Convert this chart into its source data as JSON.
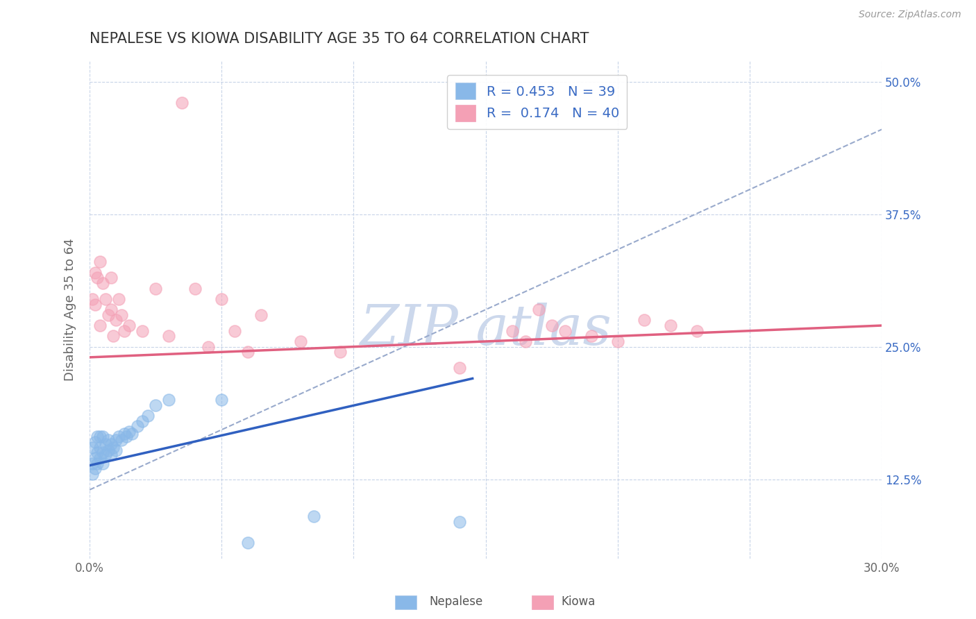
{
  "title": "NEPALESE VS KIOWA DISABILITY AGE 35 TO 64 CORRELATION CHART",
  "source": "Source: ZipAtlas.com",
  "ylabel": "Disability Age 35 to 64",
  "xlim": [
    0.0,
    0.3
  ],
  "ylim": [
    0.05,
    0.52
  ],
  "xticks": [
    0.0,
    0.05,
    0.1,
    0.15,
    0.2,
    0.25,
    0.3
  ],
  "xtick_labels": [
    "0.0%",
    "",
    "",
    "",
    "",
    "",
    "30.0%"
  ],
  "yticks": [
    0.125,
    0.25,
    0.375,
    0.5
  ],
  "ytick_labels": [
    "12.5%",
    "25.0%",
    "37.5%",
    "50.0%"
  ],
  "nepalese_R": 0.453,
  "nepalese_N": 39,
  "kiowa_R": 0.174,
  "kiowa_N": 40,
  "nepalese_color": "#89b8e8",
  "kiowa_color": "#f4a0b5",
  "nepalese_line_color": "#3060c0",
  "kiowa_line_color": "#e06080",
  "dashed_line_color": "#99aacc",
  "legend_text_color": "#3a6bc4",
  "background_color": "#ffffff",
  "grid_color": "#c8d4e8",
  "title_color": "#333333",
  "watermark_color": "#ccd8ec",
  "nepalese_x": [
    0.001,
    0.001,
    0.001,
    0.002,
    0.002,
    0.002,
    0.003,
    0.003,
    0.003,
    0.004,
    0.004,
    0.004,
    0.005,
    0.005,
    0.005,
    0.006,
    0.006,
    0.007,
    0.007,
    0.008,
    0.008,
    0.009,
    0.01,
    0.01,
    0.011,
    0.012,
    0.013,
    0.014,
    0.015,
    0.016,
    0.018,
    0.02,
    0.022,
    0.025,
    0.03,
    0.05,
    0.06,
    0.085,
    0.14
  ],
  "nepalese_y": [
    0.13,
    0.14,
    0.155,
    0.135,
    0.145,
    0.16,
    0.14,
    0.15,
    0.165,
    0.145,
    0.155,
    0.165,
    0.14,
    0.15,
    0.165,
    0.148,
    0.158,
    0.152,
    0.162,
    0.148,
    0.158,
    0.155,
    0.152,
    0.162,
    0.165,
    0.162,
    0.168,
    0.165,
    0.17,
    0.168,
    0.175,
    0.18,
    0.185,
    0.195,
    0.2,
    0.2,
    0.065,
    0.09,
    0.085
  ],
  "kiowa_x": [
    0.001,
    0.002,
    0.002,
    0.003,
    0.004,
    0.004,
    0.005,
    0.006,
    0.007,
    0.008,
    0.008,
    0.009,
    0.01,
    0.011,
    0.012,
    0.013,
    0.015,
    0.02,
    0.025,
    0.03,
    0.035,
    0.04,
    0.045,
    0.05,
    0.055,
    0.06,
    0.065,
    0.08,
    0.095,
    0.14,
    0.16,
    0.165,
    0.17,
    0.175,
    0.18,
    0.19,
    0.2,
    0.21,
    0.22,
    0.23
  ],
  "kiowa_y": [
    0.295,
    0.29,
    0.32,
    0.315,
    0.33,
    0.27,
    0.31,
    0.295,
    0.28,
    0.285,
    0.315,
    0.26,
    0.275,
    0.295,
    0.28,
    0.265,
    0.27,
    0.265,
    0.305,
    0.26,
    0.48,
    0.305,
    0.25,
    0.295,
    0.265,
    0.245,
    0.28,
    0.255,
    0.245,
    0.23,
    0.265,
    0.255,
    0.285,
    0.27,
    0.265,
    0.26,
    0.255,
    0.275,
    0.27,
    0.265
  ],
  "nepalese_line_x": [
    0.0,
    0.145
  ],
  "nepalese_line_y": [
    0.138,
    0.22
  ],
  "kiowa_line_x": [
    0.0,
    0.3
  ],
  "kiowa_line_y": [
    0.24,
    0.27
  ],
  "dashed_line_x": [
    0.0,
    0.3
  ],
  "dashed_line_y": [
    0.115,
    0.455
  ]
}
